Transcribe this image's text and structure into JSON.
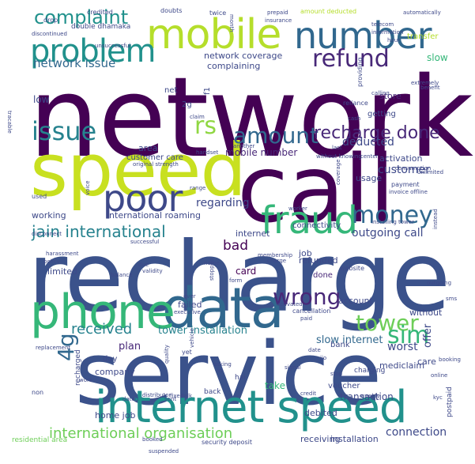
{
  "words": [
    {
      "text": "network",
      "color": "#440154"
    },
    {
      "text": "recharge",
      "color": "#3b528b"
    },
    {
      "text": "service",
      "color": "#3b528b"
    },
    {
      "text": "call",
      "color": "#440154"
    },
    {
      "text": "speed",
      "color": "#c8e020"
    },
    {
      "text": "data",
      "color": "#31688e"
    },
    {
      "text": "phone",
      "color": "#35b779"
    },
    {
      "text": "internet speed",
      "color": "#21918c"
    },
    {
      "text": "mobile",
      "color": "#b5de2b"
    },
    {
      "text": "number",
      "color": "#31688e"
    },
    {
      "text": "fraud",
      "color": "#35b779"
    },
    {
      "text": "poor",
      "color": "#3e4989"
    },
    {
      "text": "money",
      "color": "#31688e"
    },
    {
      "text": "problem",
      "color": "#21918c"
    },
    {
      "text": "refund",
      "color": "#482878"
    },
    {
      "text": "amount",
      "color": "#31688e"
    },
    {
      "text": "wrong",
      "color": "#482878"
    },
    {
      "text": "tower",
      "color": "#6ece58"
    },
    {
      "text": "issue",
      "color": "#26828e"
    },
    {
      "text": "sim",
      "color": "#35b779"
    },
    {
      "text": "rs",
      "color": "#90d743"
    },
    {
      "text": "4g",
      "color": "#31688e"
    },
    {
      "text": "complaint",
      "color": "#21918c"
    },
    {
      "text": "recharge done",
      "color": "#482878"
    },
    {
      "text": "jain international",
      "color": "#26828e"
    },
    {
      "text": "international organisation",
      "color": "#6ece58"
    },
    {
      "text": "network issue",
      "color": "#31688e"
    },
    {
      "text": "received",
      "color": "#26828e"
    },
    {
      "text": "tower installation",
      "color": "#26828e"
    },
    {
      "text": "slow internet",
      "color": "#31688e"
    },
    {
      "text": "outgoing call",
      "color": "#3e4989"
    },
    {
      "text": "network coverage",
      "color": "#3e4989"
    },
    {
      "text": "connection",
      "color": "#3e4989"
    },
    {
      "text": "customer",
      "color": "#3e4989"
    },
    {
      "text": "mobile number",
      "color": "#482878"
    },
    {
      "text": "deducted",
      "color": "#3e4989"
    },
    {
      "text": "bad",
      "color": "#440154"
    },
    {
      "text": "regarding",
      "color": "#3e4989"
    },
    {
      "text": "international roaming",
      "color": "#3e4989"
    },
    {
      "text": "complaining",
      "color": "#3e4989"
    },
    {
      "text": "area",
      "color": "#3e4989"
    },
    {
      "text": "customer care",
      "color": "#3e4989"
    },
    {
      "text": "worst",
      "color": "#3e4989"
    },
    {
      "text": "account",
      "color": "#3e4989"
    },
    {
      "text": "plan",
      "color": "#482878"
    },
    {
      "text": "working",
      "color": "#3e4989"
    },
    {
      "text": "low",
      "color": "#3e4989"
    },
    {
      "text": "limited",
      "color": "#3e4989"
    },
    {
      "text": "card",
      "color": "#440154"
    },
    {
      "text": "done",
      "color": "#482878"
    },
    {
      "text": "slow",
      "color": "#35b779"
    },
    {
      "text": "job",
      "color": "#3e4989"
    },
    {
      "text": "offer",
      "color": "#3e4989"
    },
    {
      "text": "refunded",
      "color": "#3e4989"
    },
    {
      "text": "internet",
      "color": "#3e4989"
    },
    {
      "text": "usage",
      "color": "#3e4989"
    },
    {
      "text": "store",
      "color": "#482878"
    },
    {
      "text": "getting",
      "color": "#3e4989"
    },
    {
      "text": "activation",
      "color": "#3e4989"
    },
    {
      "text": "connectivity",
      "color": "#3e4989"
    },
    {
      "text": "net",
      "color": "#3e4989"
    },
    {
      "text": "home job",
      "color": "#3e4989"
    },
    {
      "text": "company",
      "color": "#3e4989"
    },
    {
      "text": "transaction",
      "color": "#3e4989"
    },
    {
      "text": "debited",
      "color": "#3e4989"
    },
    {
      "text": "receiving",
      "color": "#3e4989"
    },
    {
      "text": "installation",
      "color": "#3e4989"
    },
    {
      "text": "voucher",
      "color": "#3e4989"
    },
    {
      "text": "take",
      "color": "#35b779"
    },
    {
      "text": "mediclaim",
      "color": "#3e4989"
    },
    {
      "text": "without",
      "color": "#3e4989"
    },
    {
      "text": "care",
      "color": "#3e4989"
    },
    {
      "text": "failed",
      "color": "#3e4989"
    },
    {
      "text": "residential area",
      "color": "#6ece58"
    },
    {
      "text": "postpaid",
      "color": "#3e4989"
    },
    {
      "text": "recharged",
      "color": "#3e4989"
    },
    {
      "text": "day",
      "color": "#3e4989"
    },
    {
      "text": "bank",
      "color": "#3e4989"
    },
    {
      "text": "back",
      "color": "#3e4989"
    },
    {
      "text": "hai",
      "color": "#3e4989"
    },
    {
      "text": "charging",
      "color": "#3e4989"
    },
    {
      "text": "2g",
      "color": "#3e4989"
    },
    {
      "text": "f1",
      "color": "#3e4989"
    },
    {
      "text": "credited",
      "color": "#3e4989"
    },
    {
      "text": "double dhamaka",
      "color": "#3e4989"
    },
    {
      "text": "drop",
      "color": "#3e4989"
    },
    {
      "text": "discontinued",
      "color": "#3e4989"
    },
    {
      "text": "twice",
      "color": "#3e4989"
    },
    {
      "text": "month",
      "color": "#3e4989"
    },
    {
      "text": "prepaid",
      "color": "#3e4989"
    },
    {
      "text": "insurance",
      "color": "#3e4989"
    },
    {
      "text": "amount deducted",
      "color": "#b5de2b"
    },
    {
      "text": "automatically",
      "color": "#3e4989"
    },
    {
      "text": "transfer",
      "color": "#b5de2b"
    },
    {
      "text": "information",
      "color": "#3e4989"
    },
    {
      "text": "hour",
      "color": "#3e4989"
    },
    {
      "text": "telecom",
      "color": "#3e4989"
    },
    {
      "text": "unsuccessful",
      "color": "#3e4989"
    },
    {
      "text": "benefit",
      "color": "#3e4989"
    },
    {
      "text": "disconnect",
      "color": "#3e4989"
    },
    {
      "text": "handset",
      "color": "#3e4989"
    },
    {
      "text": "last",
      "color": "#3e4989"
    },
    {
      "text": "center",
      "color": "#3e4989"
    },
    {
      "text": "payment",
      "color": "#3e4989"
    },
    {
      "text": "invoice offline",
      "color": "#3e4989"
    },
    {
      "text": "validity",
      "color": "#3e4989"
    },
    {
      "text": "harassment",
      "color": "#3e4989"
    },
    {
      "text": "policy",
      "color": "#3e4989"
    },
    {
      "text": "balance",
      "color": "#3e4989"
    },
    {
      "text": "due",
      "color": "#3e4989"
    },
    {
      "text": "website",
      "color": "#3e4989"
    },
    {
      "text": "cancellation",
      "color": "#3e4989"
    },
    {
      "text": "paid",
      "color": "#3e4989"
    },
    {
      "text": "activated",
      "color": "#3e4989"
    },
    {
      "text": "used",
      "color": "#3e4989"
    },
    {
      "text": "another",
      "color": "#3e4989"
    },
    {
      "text": "claim",
      "color": "#3e4989"
    },
    {
      "text": "cash",
      "color": "#3e4989"
    },
    {
      "text": "reliance",
      "color": "#3e4989"
    },
    {
      "text": "providing",
      "color": "#3e4989"
    },
    {
      "text": "successful",
      "color": "#3e4989"
    },
    {
      "text": "membership",
      "color": "#3e4989"
    },
    {
      "text": "charge",
      "color": "#3e4989"
    },
    {
      "text": "worker",
      "color": "#3e4989"
    },
    {
      "text": "date",
      "color": "#3e4989"
    },
    {
      "text": "dated",
      "color": "#3e4989"
    },
    {
      "text": "non",
      "color": "#3e4989"
    },
    {
      "text": "security deposit",
      "color": "#3e4989"
    },
    {
      "text": "booked",
      "color": "#3e4989"
    },
    {
      "text": "yet",
      "color": "#3e4989"
    },
    {
      "text": "vehicle",
      "color": "#3e4989"
    },
    {
      "text": "stopped",
      "color": "#3e4989"
    },
    {
      "text": "signal",
      "color": "#3e4989"
    },
    {
      "text": "sms",
      "color": "#3e4989"
    },
    {
      "text": "outgoing",
      "color": "#3e4989"
    },
    {
      "text": "unlimited",
      "color": "#3e4989"
    },
    {
      "text": "consumption",
      "color": "#3e4989"
    },
    {
      "text": "original strength",
      "color": "#3e4989"
    },
    {
      "text": "extremely",
      "color": "#3e4989"
    },
    {
      "text": "range",
      "color": "#3e4989"
    },
    {
      "text": "ever",
      "color": "#3e4989"
    },
    {
      "text": "online",
      "color": "#3e4989"
    },
    {
      "text": "booking",
      "color": "#3e4989"
    },
    {
      "text": "replacement",
      "color": "#3e4989"
    },
    {
      "text": "executive",
      "color": "#3e4989"
    },
    {
      "text": "suspended",
      "color": "#3e4989"
    },
    {
      "text": "distributor",
      "color": "#3e4989"
    },
    {
      "text": "credit",
      "color": "#3e4989"
    },
    {
      "text": "installing tower",
      "color": "#3e4989"
    },
    {
      "text": "asking",
      "color": "#3e4989"
    },
    {
      "text": "quality",
      "color": "#3e4989"
    },
    {
      "text": "doubts",
      "color": "#3e4989"
    },
    {
      "text": "instead",
      "color": "#3e4989"
    },
    {
      "text": "without knowing",
      "color": "#3e4989"
    },
    {
      "text": "tracable",
      "color": "#3e4989"
    },
    {
      "text": "calling",
      "color": "#3e4989"
    },
    {
      "text": "talk",
      "color": "#3e4989"
    },
    {
      "text": "mr",
      "color": "#3e4989"
    },
    {
      "text": "id",
      "color": "#3e4989"
    },
    {
      "text": "kyc",
      "color": "#3e4989"
    },
    {
      "text": "work",
      "color": "#3e4989"
    },
    {
      "text": "fixed",
      "color": "#3e4989"
    },
    {
      "text": "sent",
      "color": "#3e4989"
    },
    {
      "text": "jio",
      "color": "#3e4989"
    },
    {
      "text": "coverage",
      "color": "#3e4989"
    },
    {
      "text": "weekly",
      "color": "#3e4989"
    },
    {
      "text": "voice",
      "color": "#3e4989"
    },
    {
      "text": "stop",
      "color": "#3e4989"
    },
    {
      "text": "form",
      "color": "#3e4989"
    },
    {
      "text": "name",
      "color": "#3e4989"
    }
  ]
}
